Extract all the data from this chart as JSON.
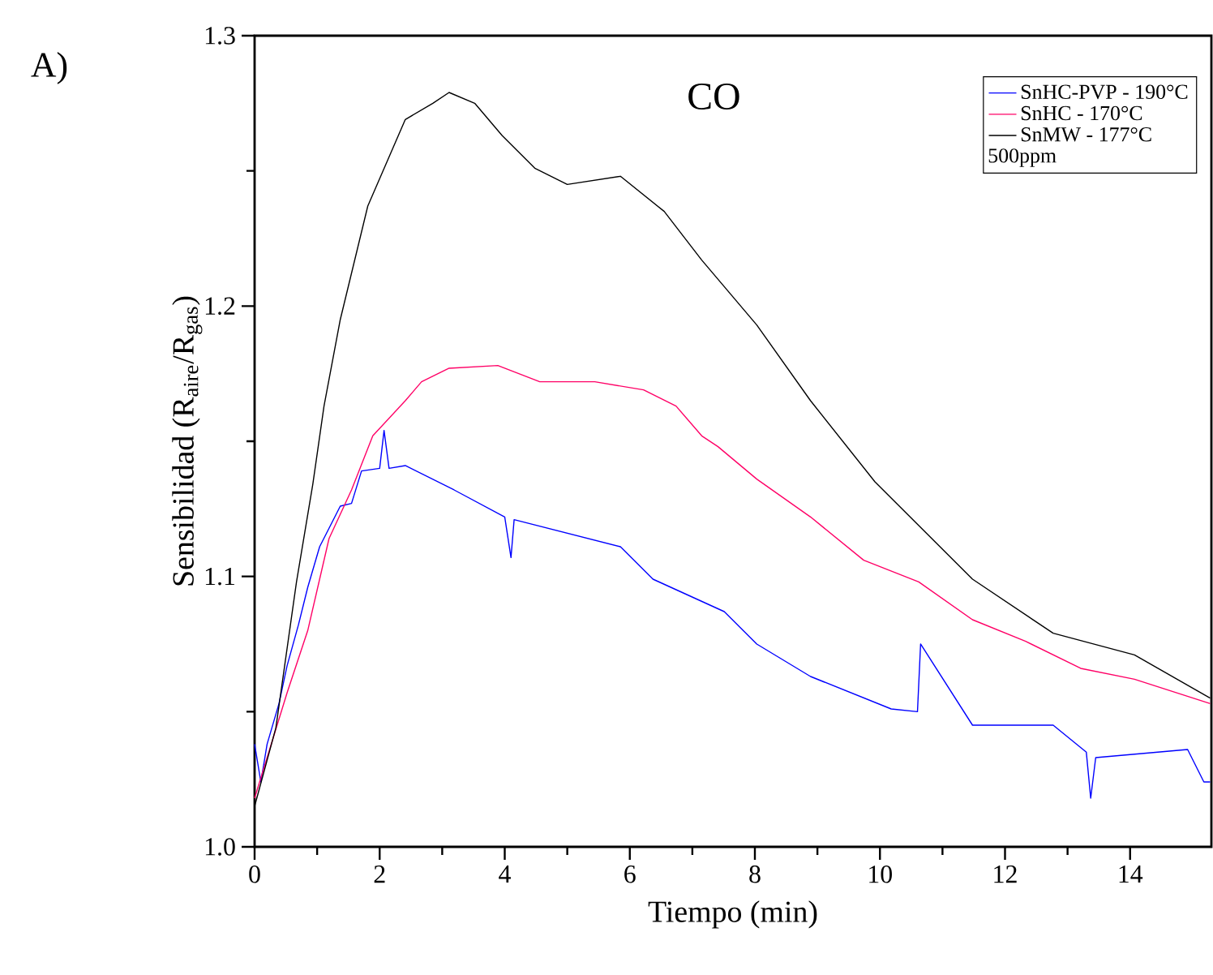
{
  "chart_data": {
    "type": "line",
    "xlabel": "Tiempo (min)",
    "ylabel": "Sensibilidad (R$_{aire}$/R$_{gas}$)",
    "legend_title": "500ppm",
    "legend": "top right",
    "grid": false,
    "marker": "none",
    "line_style": "solid",
    "annotations": [
      "A)",
      "CO"
    ],
    "xlim": [
      0,
      15.3
    ],
    "ylim": [
      1.0,
      1.3
    ],
    "xticks": [
      0,
      2,
      4,
      6,
      8,
      10,
      12,
      14
    ],
    "yticks": [
      {
        "value": 1.0,
        "label": "1.0"
      },
      {
        "value": 1.1,
        "label": "1.1"
      },
      {
        "value": 1.2,
        "label": "1.2"
      },
      {
        "value": 1.3,
        "label": "1.3"
      }
    ],
    "series": [
      {
        "name": "SnHC-PVP - 190°C",
        "color": "#0000ff",
        "x": [
          0,
          0.1,
          0.2,
          0.39,
          0.52,
          0.7,
          0.85,
          1.04,
          1.37,
          1.55,
          1.71,
          2.0,
          2.07,
          2.15,
          2.41,
          3.19,
          4.0,
          4.1,
          4.15,
          5.85,
          6.37,
          7.51,
          8.03,
          8.89,
          10.18,
          10.6,
          10.65,
          11.48,
          12.77,
          13.3,
          13.37,
          13.45,
          14.92,
          15.18,
          15.28
        ],
        "values": [
          1.038,
          1.024,
          1.038,
          1.053,
          1.067,
          1.082,
          1.096,
          1.111,
          1.126,
          1.127,
          1.139,
          1.14,
          1.154,
          1.14,
          1.141,
          1.132,
          1.122,
          1.107,
          1.121,
          1.111,
          1.099,
          1.087,
          1.075,
          1.063,
          1.051,
          1.05,
          1.075,
          1.045,
          1.045,
          1.035,
          1.018,
          1.033,
          1.036,
          1.024,
          1.024
        ]
      },
      {
        "name": "SnHC - 170°C",
        "color": "#ff0066",
        "x": [
          0,
          0.52,
          0.85,
          1.19,
          1.55,
          1.89,
          2.41,
          2.67,
          3.11,
          3.89,
          4.56,
          5.44,
          6.22,
          6.74,
          7.15,
          7.41,
          8.03,
          8.89,
          9.74,
          10.62,
          11.48,
          12.33,
          13.21,
          14.07,
          15.28
        ],
        "values": [
          1.018,
          1.057,
          1.08,
          1.114,
          1.132,
          1.152,
          1.165,
          1.172,
          1.177,
          1.178,
          1.172,
          1.172,
          1.169,
          1.163,
          1.152,
          1.148,
          1.136,
          1.122,
          1.106,
          1.098,
          1.084,
          1.076,
          1.066,
          1.062,
          1.053
        ]
      },
      {
        "name": "SnMW - 177°C",
        "color": "#000000",
        "x": [
          0,
          0.34,
          0.67,
          0.93,
          1.11,
          1.37,
          1.81,
          2.41,
          2.85,
          3.11,
          3.52,
          3.96,
          4.48,
          5.0,
          5.85,
          6.55,
          7.15,
          8.03,
          8.89,
          9.92,
          10.44,
          11.48,
          12.77,
          14.07,
          15.28
        ],
        "values": [
          1.015,
          1.044,
          1.098,
          1.134,
          1.163,
          1.195,
          1.237,
          1.269,
          1.275,
          1.279,
          1.275,
          1.263,
          1.251,
          1.245,
          1.248,
          1.235,
          1.217,
          1.193,
          1.165,
          1.135,
          1.123,
          1.099,
          1.079,
          1.071,
          1.055
        ]
      }
    ]
  }
}
